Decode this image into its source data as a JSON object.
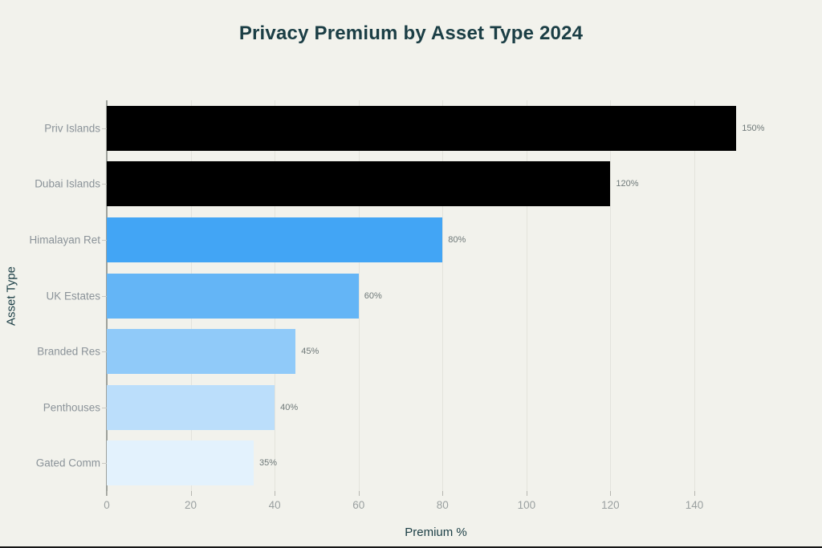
{
  "title": "Privacy Premium by Asset Type 2024",
  "chart_data": {
    "type": "bar",
    "orientation": "horizontal",
    "title": "Privacy Premium by Asset Type 2024",
    "xlabel": "Premium %",
    "ylabel": "Asset Type",
    "categories": [
      "Priv Islands",
      "Dubai Islands",
      "Himalayan Ret",
      "UK Estates",
      "Branded Res",
      "Penthouses",
      "Gated Comm"
    ],
    "values": [
      150,
      120,
      80,
      60,
      45,
      40,
      35
    ],
    "data_labels": [
      "150%",
      "120%",
      "80%",
      "60%",
      "45%",
      "40%",
      "35%"
    ],
    "bar_colors": [
      "#000000",
      "#000000",
      "#42A5F5",
      "#64B5F6",
      "#90CAF9",
      "#BBDEFB",
      "#E3F2FD"
    ],
    "xticks": [
      0,
      20,
      40,
      60,
      80,
      100,
      120,
      140
    ],
    "xlim": [
      0,
      164
    ],
    "grid": "vertical-light",
    "legend": "none",
    "colors": {
      "background": "#F2F2EC",
      "title_text": "#1B3E45",
      "axis_label_text": "#1B3E45",
      "tick_label_text": "#9AA0A0",
      "category_label_text": "#8B9399",
      "value_label_text": "#6E7878",
      "axis_line": "#9EA19B",
      "gridline": "#E3E3DC"
    }
  }
}
